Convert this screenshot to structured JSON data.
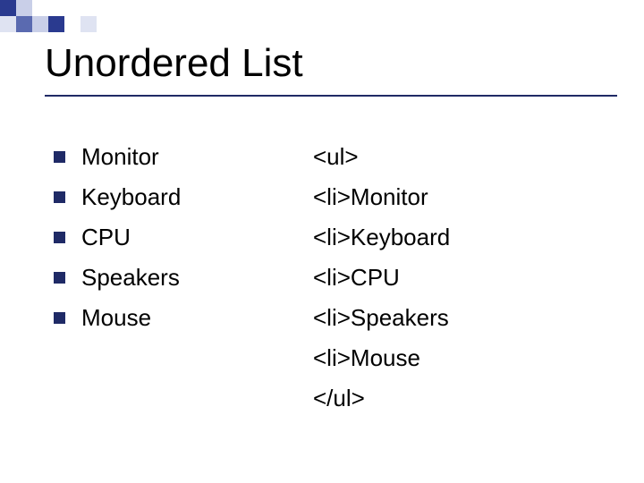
{
  "decor": {
    "squares": [
      {
        "r": 0,
        "c": 0,
        "color": "#2a3a8f"
      },
      {
        "r": 0,
        "c": 1,
        "color": "#c9cfe8"
      },
      {
        "r": 0,
        "c": 2,
        "color": "#ffffff"
      },
      {
        "r": 0,
        "c": 3,
        "color": "#ffffff"
      },
      {
        "r": 0,
        "c": 4,
        "color": "#ffffff"
      },
      {
        "r": 0,
        "c": 5,
        "color": "#ffffff"
      },
      {
        "r": 1,
        "c": 0,
        "color": "#dfe3f2"
      },
      {
        "r": 1,
        "c": 1,
        "color": "#5a6ab0"
      },
      {
        "r": 1,
        "c": 2,
        "color": "#c9cfe8"
      },
      {
        "r": 1,
        "c": 3,
        "color": "#2a3a8f"
      },
      {
        "r": 1,
        "c": 4,
        "color": "#ffffff"
      },
      {
        "r": 1,
        "c": 5,
        "color": "#dfe3f2"
      }
    ]
  },
  "title": "Unordered List",
  "bullets": {
    "marker_color": "#1f2a66",
    "items": [
      "Monitor",
      "Keyboard",
      "CPU",
      "Speakers",
      "Mouse"
    ]
  },
  "code": {
    "lines": [
      "<ul>",
      "<li>Monitor",
      "<li>Keyboard",
      "<li>CPU",
      "<li>Speakers",
      "<li>Mouse",
      "</ul>"
    ]
  },
  "styling": {
    "title_fontsize": 44,
    "body_fontsize": 26,
    "underline_color": "#1f2a66",
    "background": "#ffffff",
    "text_color": "#000000"
  }
}
